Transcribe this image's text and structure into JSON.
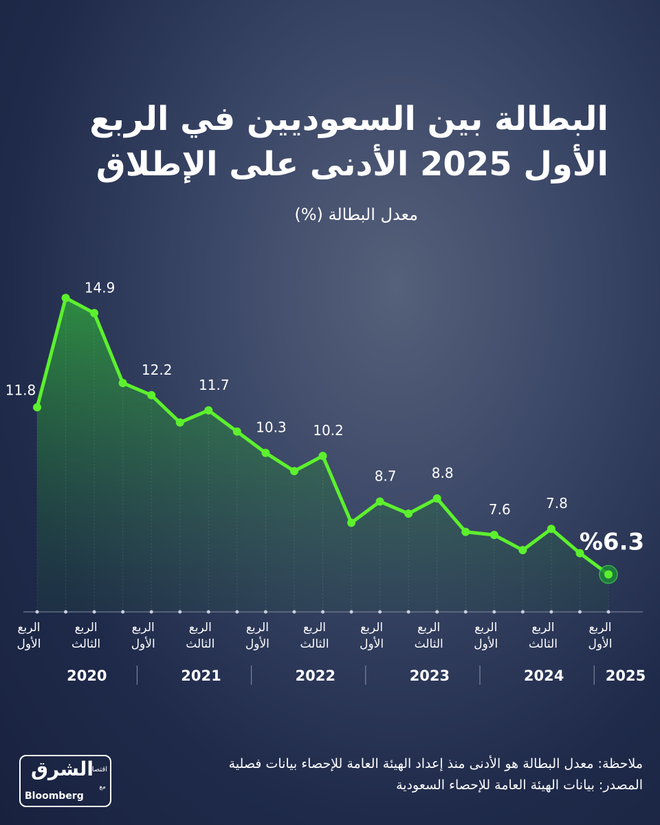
{
  "title_lines": [
    "البطالة بين السعوديين في الربع",
    "الأول 2025 الأدنى على الإطلاق"
  ],
  "chart_data": {
    "type": "line",
    "subtitle": "معدل البطالة (%)",
    "categories": [
      "الربع الأول",
      null,
      "الربع الثالث",
      null,
      "الربع الأول",
      null,
      "الربع الثالث",
      null,
      "الربع الأول",
      null,
      "الربع الثالث",
      null,
      "الربع الأول",
      null,
      "الربع الثالث",
      null,
      "الربع الأول",
      null,
      "الربع الثالث",
      null,
      "الربع الأول"
    ],
    "years": [
      "2020",
      "2021",
      "2022",
      "2023",
      "2024",
      "2025"
    ],
    "series": [
      {
        "name": "معدل البطالة",
        "color": "#5cf02e",
        "values": [
          11.8,
          15.4,
          14.9,
          12.6,
          12.2,
          11.3,
          11.7,
          11.0,
          10.3,
          9.7,
          10.2,
          8.0,
          8.7,
          8.3,
          8.8,
          7.7,
          7.6,
          7.1,
          7.8,
          7.0,
          6.3
        ],
        "value_labels": [
          "11.8",
          null,
          "14.9",
          null,
          "12.2",
          null,
          "11.7",
          null,
          "10.3",
          null,
          "10.2",
          null,
          "8.7",
          null,
          "8.8",
          null,
          "7.6",
          null,
          "7.8",
          null,
          "%6.3"
        ]
      }
    ]
  },
  "note": "ملاحظة: معدل البطالة هو الأدنى منذ إعداد الهيئة العامة للإحصاء بيانات فصلية",
  "source": "المصدر: بيانات الهيئة العامة للإحصاء السعودية",
  "logo": {
    "main": "الشرق",
    "sub": "اقتصاد",
    "with": "مع",
    "brand": "Bloomberg"
  }
}
